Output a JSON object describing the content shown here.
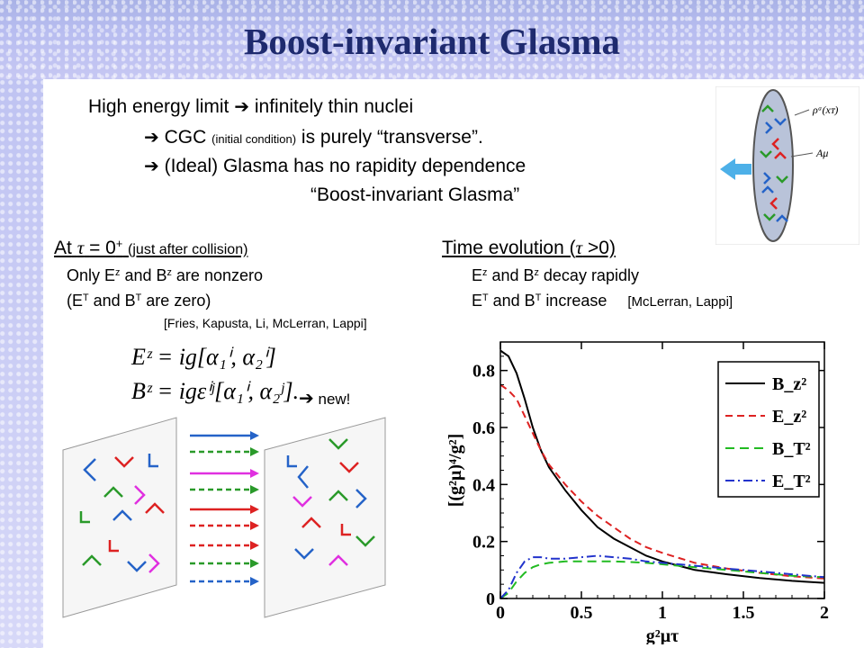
{
  "slide": {
    "title": "Boost-invariant Glasma",
    "intro": {
      "line1": "High energy limit",
      "line1b": "infinitely thin nuclei",
      "line2a": "CGC",
      "line2b": "(initial condition)",
      "line2c": "is purely “transverse”.",
      "line3": "(Ideal) Glasma has no rapidity dependence",
      "line4": "“Boost-invariant Glasma”",
      "arrow": "➔"
    },
    "left": {
      "heading_a": "At",
      "tau": "τ",
      "heading_b": "= 0",
      "plus": "+",
      "heading_c": "(just after collision)",
      "line1a": "Only E",
      "z": "z",
      "line1b": "and B",
      "line1c": "are nonzero",
      "line2a": "(E",
      "T": "T",
      "line2b": "and B",
      "line2c": "are zero)",
      "ref": "[Fries, Kapusta, Li, McLerran, Lappi]",
      "eq1": "Eᶻ = ig[α₁ⁱ, α₂ⁱ]",
      "eq2": "Bᶻ = igεⁱʲ[α₁ⁱ, α₂ʲ].",
      "new_label": "new!"
    },
    "right": {
      "heading_a": "Time evolution (",
      "tau": "τ",
      "heading_b": ">0)",
      "line1a": "E",
      "z": "z",
      "line1b": "and B",
      "line1c": "decay rapidly",
      "line2a": "E",
      "T": "T",
      "line2b": "and B",
      "line2c": "increase",
      "ref": "[McLerran, Lappi]"
    },
    "nucleus_labels": {
      "rho": "ρᵃ(xᴛ)",
      "A": "Aμ"
    }
  },
  "chart_data": {
    "type": "line",
    "xlabel": "g²μτ",
    "ylabel": "[(g²μ)⁴/g²]",
    "xlim": [
      0,
      2
    ],
    "ylim": [
      0,
      0.9
    ],
    "xticks": [
      "0",
      "0.5",
      "1",
      "1.5",
      "2"
    ],
    "yticks": [
      "0",
      "0.2",
      "0.4",
      "0.6",
      "0.8"
    ],
    "legend_position": "top-right",
    "x": [
      0,
      0.05,
      0.1,
      0.15,
      0.2,
      0.25,
      0.3,
      0.4,
      0.5,
      0.6,
      0.7,
      0.8,
      0.9,
      1.0,
      1.2,
      1.4,
      1.6,
      1.8,
      2.0
    ],
    "series": [
      {
        "name": "B_z²",
        "color": "#000000",
        "dash": "solid",
        "values": [
          0.87,
          0.85,
          0.79,
          0.7,
          0.6,
          0.52,
          0.46,
          0.38,
          0.31,
          0.25,
          0.21,
          0.18,
          0.15,
          0.13,
          0.1,
          0.085,
          0.072,
          0.062,
          0.055
        ]
      },
      {
        "name": "E_z²",
        "color": "#dd2222",
        "dash": "8,5",
        "values": [
          0.75,
          0.73,
          0.7,
          0.64,
          0.58,
          0.52,
          0.47,
          0.4,
          0.34,
          0.29,
          0.25,
          0.21,
          0.18,
          0.16,
          0.125,
          0.105,
          0.09,
          0.078,
          0.07
        ]
      },
      {
        "name": "B_T²",
        "color": "#22bb22",
        "dash": "10,6",
        "values": [
          0.0,
          0.02,
          0.06,
          0.09,
          0.11,
          0.12,
          0.125,
          0.13,
          0.13,
          0.13,
          0.13,
          0.128,
          0.125,
          0.12,
          0.11,
          0.1,
          0.09,
          0.08,
          0.075
        ]
      },
      {
        "name": "E_T²",
        "color": "#2233cc",
        "dash": "10,4,2,4",
        "values": [
          0.0,
          0.03,
          0.09,
          0.13,
          0.145,
          0.145,
          0.14,
          0.14,
          0.145,
          0.15,
          0.145,
          0.14,
          0.13,
          0.125,
          0.115,
          0.105,
          0.095,
          0.085,
          0.075
        ]
      }
    ]
  }
}
